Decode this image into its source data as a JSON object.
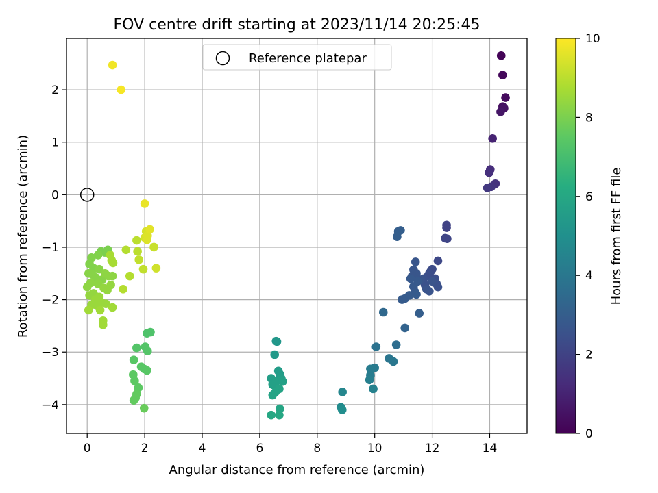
{
  "chart_data": {
    "type": "scatter",
    "title": "FOV centre drift starting at 2023/11/14 20:25:45",
    "xlabel": "Angular distance from reference (arcmin)",
    "ylabel": "Rotation from reference (arcmin)",
    "xlim": [
      -0.72,
      15.3
    ],
    "ylim": [
      -4.55,
      2.98
    ],
    "xticks": [
      0,
      2,
      4,
      6,
      8,
      10,
      12,
      14
    ],
    "yticks": [
      -4,
      -3,
      -2,
      -1,
      0,
      1,
      2
    ],
    "grid": true,
    "legend": {
      "position": "top-center",
      "entries": [
        "Reference platepar"
      ]
    },
    "reference_point": {
      "x": 0,
      "y": 0,
      "label": "Reference platepar"
    },
    "colorbar": {
      "label": "Hours from first FF file",
      "colormap": "viridis",
      "range": [
        0,
        10
      ],
      "ticks": [
        0,
        2,
        4,
        6,
        8,
        10
      ]
    },
    "points": [
      {
        "x": 14.4,
        "y": 2.65,
        "c": 0.1
      },
      {
        "x": 14.45,
        "y": 2.28,
        "c": 0.2
      },
      {
        "x": 14.55,
        "y": 1.85,
        "c": 0.3
      },
      {
        "x": 14.45,
        "y": 1.68,
        "c": 0.4
      },
      {
        "x": 14.5,
        "y": 1.65,
        "c": 0.5
      },
      {
        "x": 14.38,
        "y": 1.58,
        "c": 0.6
      },
      {
        "x": 14.1,
        "y": 1.07,
        "c": 1.0
      },
      {
        "x": 14.02,
        "y": 0.48,
        "c": 1.3
      },
      {
        "x": 13.98,
        "y": 0.42,
        "c": 1.4
      },
      {
        "x": 14.2,
        "y": 0.21,
        "c": 1.5
      },
      {
        "x": 14.05,
        "y": 0.15,
        "c": 1.6
      },
      {
        "x": 13.92,
        "y": 0.13,
        "c": 1.7
      },
      {
        "x": 12.5,
        "y": -0.58,
        "c": 2.0
      },
      {
        "x": 12.5,
        "y": -0.63,
        "c": 2.0
      },
      {
        "x": 12.45,
        "y": -0.83,
        "c": 2.1
      },
      {
        "x": 12.52,
        "y": -0.84,
        "c": 2.1
      },
      {
        "x": 12.2,
        "y": -1.26,
        "c": 2.2
      },
      {
        "x": 12.0,
        "y": -1.42,
        "c": 2.3
      },
      {
        "x": 11.95,
        "y": -1.46,
        "c": 2.3
      },
      {
        "x": 11.9,
        "y": -1.5,
        "c": 2.4
      },
      {
        "x": 11.85,
        "y": -1.55,
        "c": 2.4
      },
      {
        "x": 12.1,
        "y": -1.6,
        "c": 2.4
      },
      {
        "x": 12.15,
        "y": -1.7,
        "c": 2.5
      },
      {
        "x": 12.2,
        "y": -1.76,
        "c": 2.5
      },
      {
        "x": 11.7,
        "y": -1.6,
        "c": 2.5
      },
      {
        "x": 11.75,
        "y": -1.72,
        "c": 2.5
      },
      {
        "x": 11.8,
        "y": -1.8,
        "c": 2.6
      },
      {
        "x": 11.9,
        "y": -1.84,
        "c": 2.6
      },
      {
        "x": 12.0,
        "y": -1.65,
        "c": 2.6
      },
      {
        "x": 11.6,
        "y": -1.62,
        "c": 2.6
      },
      {
        "x": 11.45,
        "y": -1.5,
        "c": 2.7
      },
      {
        "x": 11.35,
        "y": -1.43,
        "c": 2.7
      },
      {
        "x": 11.42,
        "y": -1.28,
        "c": 2.7
      },
      {
        "x": 11.3,
        "y": -1.55,
        "c": 2.7
      },
      {
        "x": 11.25,
        "y": -1.6,
        "c": 2.8
      },
      {
        "x": 11.5,
        "y": -1.65,
        "c": 2.8
      },
      {
        "x": 11.35,
        "y": -1.75,
        "c": 2.8
      },
      {
        "x": 11.4,
        "y": -1.85,
        "c": 2.8
      },
      {
        "x": 11.2,
        "y": -1.92,
        "c": 2.9
      },
      {
        "x": 11.45,
        "y": -1.9,
        "c": 2.9
      },
      {
        "x": 11.05,
        "y": -1.98,
        "c": 2.9
      },
      {
        "x": 10.95,
        "y": -2.0,
        "c": 2.9
      },
      {
        "x": 11.55,
        "y": -2.26,
        "c": 3.0
      },
      {
        "x": 10.9,
        "y": -0.68,
        "c": 3.0
      },
      {
        "x": 10.82,
        "y": -0.7,
        "c": 3.0
      },
      {
        "x": 10.78,
        "y": -0.8,
        "c": 3.0
      },
      {
        "x": 11.05,
        "y": -2.54,
        "c": 3.2
      },
      {
        "x": 10.3,
        "y": -2.24,
        "c": 3.4
      },
      {
        "x": 10.75,
        "y": -2.86,
        "c": 3.6
      },
      {
        "x": 10.05,
        "y": -2.9,
        "c": 3.8
      },
      {
        "x": 10.5,
        "y": -3.12,
        "c": 3.9
      },
      {
        "x": 10.65,
        "y": -3.18,
        "c": 4.0
      },
      {
        "x": 10.0,
        "y": -3.3,
        "c": 4.1
      },
      {
        "x": 9.85,
        "y": -3.32,
        "c": 4.2
      },
      {
        "x": 9.85,
        "y": -3.44,
        "c": 4.2
      },
      {
        "x": 9.82,
        "y": -3.53,
        "c": 4.3
      },
      {
        "x": 9.95,
        "y": -3.7,
        "c": 4.4
      },
      {
        "x": 8.88,
        "y": -3.76,
        "c": 4.6
      },
      {
        "x": 8.82,
        "y": -4.05,
        "c": 4.8
      },
      {
        "x": 8.87,
        "y": -4.1,
        "c": 4.9
      },
      {
        "x": 6.57,
        "y": -2.79,
        "c": 5.3
      },
      {
        "x": 6.6,
        "y": -2.8,
        "c": 5.3
      },
      {
        "x": 6.52,
        "y": -3.05,
        "c": 5.4
      },
      {
        "x": 6.65,
        "y": -3.36,
        "c": 5.5
      },
      {
        "x": 6.7,
        "y": -3.42,
        "c": 5.5
      },
      {
        "x": 6.75,
        "y": -3.5,
        "c": 5.6
      },
      {
        "x": 6.4,
        "y": -3.5,
        "c": 5.6
      },
      {
        "x": 6.45,
        "y": -3.55,
        "c": 5.6
      },
      {
        "x": 6.6,
        "y": -3.55,
        "c": 5.7
      },
      {
        "x": 6.8,
        "y": -3.56,
        "c": 5.7
      },
      {
        "x": 6.45,
        "y": -3.62,
        "c": 5.7
      },
      {
        "x": 6.68,
        "y": -3.7,
        "c": 5.8
      },
      {
        "x": 6.55,
        "y": -3.76,
        "c": 5.8
      },
      {
        "x": 6.45,
        "y": -3.82,
        "c": 5.8
      },
      {
        "x": 6.7,
        "y": -4.08,
        "c": 5.9
      },
      {
        "x": 6.4,
        "y": -4.2,
        "c": 6.0
      },
      {
        "x": 6.68,
        "y": -4.2,
        "c": 6.0
      },
      {
        "x": 2.2,
        "y": -2.62,
        "c": 7.2
      },
      {
        "x": 2.08,
        "y": -2.64,
        "c": 7.2
      },
      {
        "x": 1.72,
        "y": -2.92,
        "c": 7.3
      },
      {
        "x": 2.02,
        "y": -2.9,
        "c": 7.3
      },
      {
        "x": 2.1,
        "y": -2.98,
        "c": 7.3
      },
      {
        "x": 1.62,
        "y": -3.15,
        "c": 7.4
      },
      {
        "x": 1.88,
        "y": -3.28,
        "c": 7.4
      },
      {
        "x": 1.98,
        "y": -3.32,
        "c": 7.4
      },
      {
        "x": 2.08,
        "y": -3.35,
        "c": 7.4
      },
      {
        "x": 1.6,
        "y": -3.43,
        "c": 7.5
      },
      {
        "x": 1.65,
        "y": -3.55,
        "c": 7.5
      },
      {
        "x": 1.78,
        "y": -3.68,
        "c": 7.5
      },
      {
        "x": 1.72,
        "y": -3.8,
        "c": 7.6
      },
      {
        "x": 1.68,
        "y": -3.87,
        "c": 7.6
      },
      {
        "x": 1.62,
        "y": -3.92,
        "c": 7.6
      },
      {
        "x": 1.98,
        "y": -4.07,
        "c": 7.7
      },
      {
        "x": 0.72,
        "y": -1.05,
        "c": 8.0
      },
      {
        "x": 0.62,
        "y": -1.1,
        "c": 8.0
      },
      {
        "x": 0.48,
        "y": -1.08,
        "c": 8.0
      },
      {
        "x": 0.38,
        "y": -1.15,
        "c": 8.1
      },
      {
        "x": 0.15,
        "y": -1.2,
        "c": 8.1
      },
      {
        "x": 0.08,
        "y": -1.32,
        "c": 8.1
      },
      {
        "x": 0.22,
        "y": -1.4,
        "c": 8.1
      },
      {
        "x": 0.42,
        "y": -1.42,
        "c": 8.2
      },
      {
        "x": 0.05,
        "y": -1.5,
        "c": 8.2
      },
      {
        "x": 0.18,
        "y": -1.52,
        "c": 8.2
      },
      {
        "x": 0.3,
        "y": -1.58,
        "c": 8.2
      },
      {
        "x": 0.52,
        "y": -1.62,
        "c": 8.2
      },
      {
        "x": 0.62,
        "y": -1.5,
        "c": 8.3
      },
      {
        "x": 0.75,
        "y": -1.55,
        "c": 8.3
      },
      {
        "x": 0.88,
        "y": -1.55,
        "c": 8.3
      },
      {
        "x": 0.12,
        "y": -1.68,
        "c": 8.3
      },
      {
        "x": 0.38,
        "y": -1.7,
        "c": 8.3
      },
      {
        "x": 0.0,
        "y": -1.76,
        "c": 8.3
      },
      {
        "x": 0.58,
        "y": -1.78,
        "c": 8.4
      },
      {
        "x": 0.7,
        "y": -1.82,
        "c": 8.4
      },
      {
        "x": 0.82,
        "y": -1.72,
        "c": 8.4
      },
      {
        "x": 0.22,
        "y": -1.88,
        "c": 8.4
      },
      {
        "x": 0.08,
        "y": -1.92,
        "c": 8.4
      },
      {
        "x": 0.42,
        "y": -1.95,
        "c": 8.5
      },
      {
        "x": 0.28,
        "y": -2.0,
        "c": 8.5
      },
      {
        "x": 0.5,
        "y": -2.05,
        "c": 8.5
      },
      {
        "x": 0.15,
        "y": -2.1,
        "c": 8.5
      },
      {
        "x": 0.35,
        "y": -2.12,
        "c": 8.5
      },
      {
        "x": 0.65,
        "y": -2.08,
        "c": 8.5
      },
      {
        "x": 0.88,
        "y": -2.15,
        "c": 8.6
      },
      {
        "x": 0.05,
        "y": -2.2,
        "c": 8.6
      },
      {
        "x": 0.45,
        "y": -2.2,
        "c": 8.6
      },
      {
        "x": 0.55,
        "y": -2.4,
        "c": 8.6
      },
      {
        "x": 0.55,
        "y": -2.48,
        "c": 8.6
      },
      {
        "x": 0.8,
        "y": -1.15,
        "c": 8.7
      },
      {
        "x": 0.85,
        "y": -1.25,
        "c": 8.7
      },
      {
        "x": 0.9,
        "y": -1.3,
        "c": 8.7
      },
      {
        "x": 1.35,
        "y": -1.05,
        "c": 8.9
      },
      {
        "x": 1.48,
        "y": -1.55,
        "c": 8.9
      },
      {
        "x": 1.25,
        "y": -1.8,
        "c": 8.9
      },
      {
        "x": 1.75,
        "y": -1.08,
        "c": 9.0
      },
      {
        "x": 1.72,
        "y": -0.87,
        "c": 9.0
      },
      {
        "x": 1.8,
        "y": -1.24,
        "c": 9.1
      },
      {
        "x": 1.95,
        "y": -1.42,
        "c": 9.1
      },
      {
        "x": 2.32,
        "y": -1.0,
        "c": 9.2
      },
      {
        "x": 2.4,
        "y": -1.4,
        "c": 9.3
      },
      {
        "x": 2.0,
        "y": -0.82,
        "c": 9.4
      },
      {
        "x": 2.05,
        "y": -0.7,
        "c": 9.4
      },
      {
        "x": 2.1,
        "y": -0.78,
        "c": 9.5
      },
      {
        "x": 2.08,
        "y": -0.86,
        "c": 9.5
      },
      {
        "x": 2.18,
        "y": -0.66,
        "c": 9.6
      },
      {
        "x": 2.0,
        "y": -0.17,
        "c": 9.7
      },
      {
        "x": 0.88,
        "y": 2.47,
        "c": 9.8
      },
      {
        "x": 1.18,
        "y": 2.0,
        "c": 9.9
      }
    ]
  }
}
